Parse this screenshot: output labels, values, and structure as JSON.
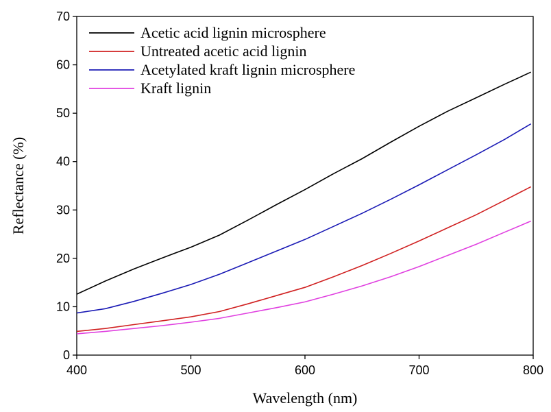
{
  "chart_data": {
    "type": "line",
    "title": "",
    "xlabel": "Wavelength (nm)",
    "ylabel": "Reflectance (%)",
    "xlim": [
      400,
      800
    ],
    "ylim": [
      0,
      70
    ],
    "xticks": [
      400,
      500,
      600,
      700,
      800
    ],
    "yticks": [
      0,
      10,
      20,
      30,
      40,
      50,
      60,
      70
    ],
    "grid": false,
    "legend_position": "top-left",
    "series": [
      {
        "name": "Acetic acid lignin microsphere",
        "color": "#000000",
        "x": [
          400,
          425,
          450,
          475,
          500,
          525,
          550,
          575,
          600,
          625,
          650,
          675,
          700,
          725,
          750,
          775,
          798
        ],
        "y": [
          12.6,
          15.3,
          17.8,
          20.1,
          22.3,
          24.8,
          27.9,
          31.1,
          34.2,
          37.5,
          40.6,
          44.0,
          47.3,
          50.4,
          53.2,
          56.0,
          58.5
        ]
      },
      {
        "name": "Untreated acetic acid lignin",
        "color": "#d02020",
        "x": [
          400,
          425,
          450,
          475,
          500,
          525,
          550,
          575,
          600,
          625,
          650,
          675,
          700,
          725,
          750,
          775,
          798
        ],
        "y": [
          4.9,
          5.5,
          6.3,
          7.1,
          7.9,
          9.0,
          10.6,
          12.3,
          14.0,
          16.2,
          18.5,
          21.0,
          23.6,
          26.3,
          29.0,
          32.0,
          34.8
        ]
      },
      {
        "name": "Acetylated kraft lignin microsphere",
        "color": "#1a1ab5",
        "x": [
          400,
          425,
          450,
          475,
          500,
          525,
          550,
          575,
          600,
          625,
          650,
          675,
          700,
          725,
          750,
          775,
          798
        ],
        "y": [
          8.7,
          9.6,
          11.1,
          12.8,
          14.6,
          16.7,
          19.1,
          21.5,
          23.9,
          26.6,
          29.3,
          32.2,
          35.2,
          38.3,
          41.4,
          44.6,
          47.8
        ]
      },
      {
        "name": "Kraft lignin",
        "color": "#e040e0",
        "x": [
          400,
          425,
          450,
          475,
          500,
          525,
          550,
          575,
          600,
          625,
          650,
          675,
          700,
          725,
          750,
          775,
          798
        ],
        "y": [
          4.4,
          4.9,
          5.5,
          6.1,
          6.8,
          7.6,
          8.7,
          9.8,
          11.0,
          12.6,
          14.3,
          16.2,
          18.3,
          20.6,
          22.9,
          25.4,
          27.7
        ]
      }
    ]
  }
}
